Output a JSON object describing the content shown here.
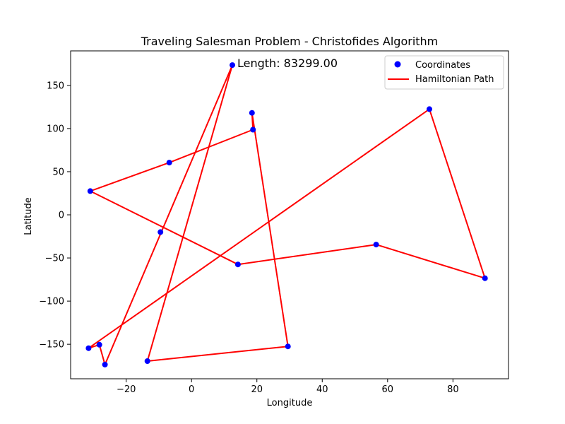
{
  "chart_data": {
    "type": "line",
    "title": "Traveling Salesman Problem - Christofides Algorithm",
    "xlabel": "Longitude",
    "ylabel": "Latitude",
    "xlim": [
      -37,
      97
    ],
    "ylim": [
      -190,
      190
    ],
    "xticks": [
      -20,
      0,
      20,
      40,
      60,
      80
    ],
    "xtick_labels": [
      "−20",
      "0",
      "20",
      "40",
      "60",
      "80"
    ],
    "yticks": [
      -150,
      -100,
      -50,
      0,
      50,
      100,
      150
    ],
    "ytick_labels": [
      "−150",
      "−100",
      "−50",
      "0",
      "50",
      "100",
      "150"
    ],
    "annotation": "Length: 83299.00",
    "legend_position": "top-right",
    "series": [
      {
        "name": "Coordinates",
        "kind": "scatter",
        "color": "#0000ff",
        "x": [
          12.5,
          18.5,
          18.8,
          -6.8,
          -31.0,
          14.2,
          56.5,
          89.8,
          72.8,
          -9.5,
          -31.5,
          -28.2,
          -26.5,
          -13.5,
          29.5
        ],
        "y": [
          173.5,
          118.2,
          98.7,
          60.5,
          27.5,
          -57.5,
          -34.5,
          -73.5,
          122.5,
          -20.0,
          -154.5,
          -150.5,
          -173.5,
          -169.5,
          -152.5
        ]
      },
      {
        "name": "Hamiltonian Path",
        "kind": "line",
        "color": "#ff0000",
        "x": [
          12.5,
          -26.5,
          -28.2,
          -31.5,
          72.8,
          89.8,
          56.5,
          14.2,
          -31.0,
          -6.8,
          18.8,
          18.5,
          29.5,
          -13.5,
          12.5
        ],
        "y": [
          173.5,
          -173.5,
          -150.5,
          -154.5,
          122.5,
          -73.5,
          -34.5,
          -57.5,
          27.5,
          60.5,
          98.7,
          118.2,
          -152.5,
          -169.5,
          173.5
        ]
      }
    ]
  }
}
